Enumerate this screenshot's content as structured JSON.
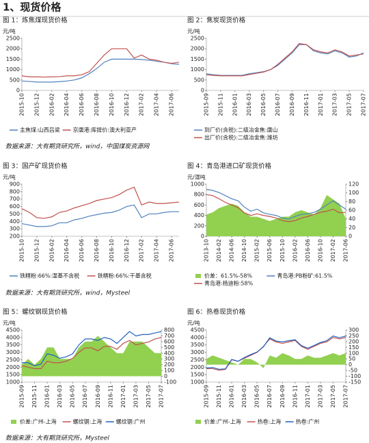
{
  "title": "1、现货价格",
  "sources": [
    "数据来源：大有期货研究所，wind，中国煤炭资源网",
    "数据来源：大有期货研究所，wind，Mysteel",
    "数据来源：大有期货研究所，Mysteel"
  ],
  "chart_data": [
    {
      "type": "line",
      "title": "图 1：炼焦煤现货价格",
      "y_label": "元/吨",
      "categories": [
        "2015-10",
        null,
        "2015-12",
        null,
        "2016-02",
        null,
        "2016-04",
        null,
        "2016-06",
        null,
        "2016-08",
        null,
        "2016-10",
        null,
        "2016-12",
        null,
        "2017-02",
        null,
        "2017-04",
        null,
        "2017-06",
        null
      ],
      "ylim": [
        0,
        2500
      ],
      "yticks": [
        0,
        500,
        1000,
        1500,
        2000,
        2500
      ],
      "series": [
        {
          "name": "主焦煤:山西吕梁",
          "color": "#4f81bd",
          "values": [
            450,
            430,
            400,
            400,
            400,
            420,
            450,
            500,
            600,
            800,
            1050,
            1350,
            1500,
            1500,
            1500,
            1500,
            1480,
            1450,
            1400,
            1350,
            1280,
            1250
          ]
        },
        {
          "name": "京唐港:库提价:澳大利亚产",
          "color": "#c0504d",
          "values": [
            700,
            650,
            650,
            640,
            650,
            660,
            700,
            700,
            750,
            900,
            1300,
            1700,
            2000,
            2000,
            2000,
            1550,
            1700,
            1500,
            1450,
            1350,
            1300,
            1350
          ]
        }
      ]
    },
    {
      "type": "line",
      "title": "图 2：焦炭现货价格",
      "y_label": "元/吨",
      "categories": [
        "2015-09",
        null,
        "2015-11",
        null,
        "2016-01",
        null,
        "2016-03",
        null,
        "2016-05",
        null,
        "2016-07",
        null,
        "2016-09",
        null,
        "2016-11",
        null,
        "2017-01",
        null,
        "2017-03",
        null,
        "2017-05",
        null,
        "2017-07"
      ],
      "ylim": [
        0,
        2500
      ],
      "yticks": [
        0,
        500,
        1000,
        1500,
        2000,
        2500
      ],
      "series": [
        {
          "name": "到厂价(含税):二级冶金焦:唐山",
          "color": "#4f81bd",
          "values": [
            800,
            750,
            720,
            720,
            720,
            720,
            800,
            850,
            900,
            1000,
            1200,
            1500,
            1800,
            2200,
            2200,
            1900,
            1800,
            1750,
            1900,
            1800,
            1600,
            1650,
            1800
          ]
        },
        {
          "name": "出厂价(含税):二级冶金焦:潍坊",
          "color": "#c0504d",
          "values": [
            750,
            720,
            700,
            700,
            700,
            700,
            760,
            820,
            880,
            1000,
            1250,
            1550,
            1850,
            2250,
            2200,
            1950,
            1850,
            1800,
            1950,
            1850,
            1650,
            1700,
            1750
          ]
        }
      ]
    },
    {
      "type": "line",
      "title": "图 3：国产矿现货价格",
      "y_label": "元/吨",
      "categories": [
        "2015-10",
        null,
        "2015-12",
        null,
        "2016-02",
        null,
        "2016-04",
        null,
        "2016-06",
        null,
        "2016-08",
        null,
        "2016-10",
        null,
        "2016-12",
        null,
        "2017-02",
        null,
        "2017-04",
        null,
        "2017-06",
        null
      ],
      "ylim": [
        200,
        900
      ],
      "yticks": [
        200,
        300,
        400,
        500,
        600,
        700,
        800,
        900
      ],
      "series": [
        {
          "name": "铁精粉:66%:湿基不含税",
          "color": "#4f81bd",
          "values": [
            370,
            350,
            330,
            330,
            340,
            380,
            380,
            420,
            440,
            470,
            490,
            510,
            520,
            550,
            600,
            620,
            450,
            500,
            500,
            520,
            530,
            530
          ]
        },
        {
          "name": "铁精粉:66%:干基含税",
          "color": "#c0504d",
          "values": [
            570,
            520,
            450,
            440,
            460,
            520,
            540,
            580,
            610,
            640,
            680,
            700,
            720,
            760,
            820,
            860,
            620,
            660,
            640,
            640,
            650,
            660
          ]
        }
      ]
    },
    {
      "type": "line",
      "title": "图 4：青岛港进口矿现货价格",
      "y_label": "元/湿吨",
      "categories": [
        "2013-10",
        null,
        "2014-02",
        null,
        "2014-06",
        null,
        "2014-10",
        null,
        "2015-02",
        null,
        "2015-06",
        null,
        "2015-10",
        null,
        "2016-02",
        null,
        "2016-06",
        null,
        "2016-10",
        null,
        "2017-02",
        null,
        "2017-06"
      ],
      "ylim": [
        0,
        1000
      ],
      "yticks": [
        0,
        200,
        400,
        600,
        800,
        1000
      ],
      "y2lim": [
        0,
        120
      ],
      "y2ticks": [
        0,
        20,
        40,
        60,
        80,
        100,
        120
      ],
      "series": [
        {
          "name": "价差：61.5%-58%",
          "color": "#92d050",
          "type": "area",
          "axis": "y2",
          "values": [
            50,
            55,
            65,
            70,
            75,
            70,
            55,
            45,
            45,
            40,
            35,
            40,
            45,
            45,
            55,
            60,
            55,
            50,
            65,
            95,
            85,
            75,
            40
          ]
        },
        {
          "name": "青岛港:PB粉矿:61.5%",
          "color": "#4f81bd",
          "values": [
            900,
            880,
            840,
            780,
            720,
            680,
            560,
            480,
            520,
            450,
            420,
            400,
            350,
            330,
            380,
            420,
            430,
            460,
            520,
            600,
            680,
            600,
            520
          ]
        },
        {
          "name": "青岛港:杨迪粉:58%",
          "color": "#c0504d",
          "values": [
            800,
            780,
            720,
            650,
            600,
            550,
            450,
            400,
            430,
            400,
            380,
            350,
            300,
            280,
            300,
            350,
            380,
            420,
            460,
            480,
            520,
            450,
            460
          ]
        }
      ]
    },
    {
      "type": "line",
      "title": "图 5：螺纹钢现货价格",
      "y_label": "元/吨",
      "categories": [
        "2015-09",
        null,
        "2015-11",
        null,
        "2016-01",
        null,
        "2016-03",
        null,
        "2016-05",
        null,
        "2016-07",
        null,
        "2016-09",
        null,
        "2016-11",
        null,
        "2017-01",
        null,
        "2017-03",
        null,
        "2017-05",
        null,
        "2017-07"
      ],
      "ylim": [
        1000,
        4500
      ],
      "yticks": [
        1000,
        1500,
        2000,
        2500,
        3000,
        3500,
        4000,
        4500
      ],
      "y2lim": [
        -100,
        800
      ],
      "y2ticks": [
        -100,
        0,
        100,
        200,
        300,
        400,
        500,
        600,
        700,
        800
      ],
      "series": [
        {
          "name": "价差:广州-上海",
          "color": "#92d050",
          "type": "area",
          "axis": "y2",
          "values": [
            200,
            300,
            200,
            300,
            500,
            500,
            300,
            300,
            300,
            500,
            600,
            600,
            700,
            600,
            500,
            400,
            400,
            600,
            600,
            600,
            500,
            400,
            400
          ]
        },
        {
          "name": "螺纹钢:上海",
          "color": "#c0504d",
          "values": [
            2100,
            2000,
            1900,
            1900,
            2400,
            2300,
            2300,
            2400,
            2600,
            3000,
            3300,
            3300,
            3100,
            3400,
            3400,
            3200,
            3600,
            3800,
            3500,
            3600,
            3700,
            3900,
            4000
          ]
        },
        {
          "name": "螺纹钢:广州",
          "color": "#1f5fbf",
          "values": [
            2300,
            2300,
            2100,
            2200,
            2900,
            2800,
            2600,
            2700,
            2900,
            3500,
            3900,
            3900,
            3800,
            4000,
            3900,
            3600,
            4000,
            4400,
            4100,
            4200,
            4200,
            4300,
            4400
          ]
        }
      ]
    },
    {
      "type": "line",
      "title": "图 6：热卷现货价格",
      "y_label": "元/吨",
      "categories": [
        "2015-09",
        null,
        "2015-11",
        null,
        "2016-01",
        null,
        "2016-03",
        null,
        "2016-05",
        null,
        "2016-07",
        null,
        "2016-09",
        null,
        "2016-11",
        null,
        "2017-01",
        null,
        "2017-03",
        null,
        "2017-05",
        null,
        "2017-07"
      ],
      "ylim": [
        1000,
        4500
      ],
      "yticks": [
        1000,
        1500,
        2000,
        2500,
        3000,
        3500,
        4000,
        4500
      ],
      "y2lim": [
        -150,
        300
      ],
      "y2ticks": [
        -150,
        -100,
        -50,
        0,
        50,
        100,
        150,
        200,
        250,
        300
      ],
      "series": [
        {
          "name": "价差:广州-上海",
          "color": "#92d050",
          "type": "area",
          "axis": "y2",
          "values": [
            50,
            80,
            60,
            40,
            20,
            0,
            50,
            50,
            20,
            -30,
            80,
            60,
            100,
            80,
            50,
            50,
            80,
            60,
            60,
            80,
            100,
            80,
            100
          ]
        },
        {
          "name": "热卷:上海",
          "color": "#c0504d",
          "values": [
            1900,
            1900,
            1800,
            1850,
            2500,
            2400,
            2600,
            2800,
            3000,
            3400,
            3900,
            3700,
            3600,
            3700,
            3800,
            3400,
            3200,
            3400,
            3600,
            3700,
            4000,
            3900,
            4000
          ]
        },
        {
          "name": "热卷:广州",
          "color": "#1f5fbf",
          "values": [
            1950,
            1980,
            1860,
            1890,
            2520,
            2400,
            2650,
            2850,
            3020,
            3370,
            3980,
            3760,
            3700,
            3780,
            3850,
            3450,
            3280,
            3460,
            3660,
            3780,
            4100,
            3980,
            4100
          ]
        }
      ]
    }
  ]
}
